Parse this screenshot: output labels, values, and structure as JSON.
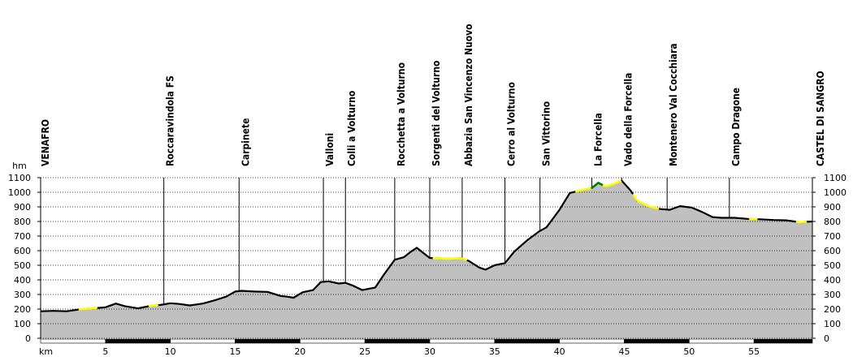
{
  "chart_data": {
    "type": "area",
    "title": "",
    "xlabel": "km",
    "ylabel": "hm",
    "xlim": [
      0,
      59.5
    ],
    "ylim": [
      0,
      1100
    ],
    "xticks": [
      5,
      10,
      15,
      20,
      25,
      30,
      35,
      40,
      45,
      50,
      55
    ],
    "yticks": [
      0,
      100,
      200,
      300,
      400,
      500,
      600,
      700,
      800,
      900,
      1000,
      1100
    ],
    "grid": true,
    "colors": {
      "fill": "#c0c0c0",
      "line": "#000000",
      "grid": "#000000",
      "highlight_gentle": "#ffff00",
      "highlight_steep": "#008000",
      "station_line": "#000000"
    },
    "profile": {
      "x": [
        0,
        1,
        2,
        3,
        4,
        5,
        5.8,
        6.5,
        7.5,
        8.5,
        9.2,
        10,
        10.7,
        11.5,
        12.5,
        13.5,
        14.3,
        15,
        15.5,
        16.5,
        17.5,
        18.5,
        19,
        19.5,
        20.2,
        21,
        21.6,
        22.2,
        23,
        23.5,
        24.1,
        24.8,
        25.8,
        26.5,
        27.3,
        28,
        28.5,
        29,
        29.5,
        30,
        30.5,
        31.5,
        32.5,
        33,
        33.8,
        34.3,
        35,
        35.8,
        36.5,
        37.5,
        38.4,
        39,
        40,
        40.8,
        41.5,
        42,
        42.5,
        43,
        43.5,
        44,
        44.8,
        45.5,
        46,
        47,
        47.8,
        48.5,
        49.3,
        50.2,
        51,
        51.8,
        52.5,
        53.5,
        54.5,
        55.5,
        56.5,
        57.5,
        58.5,
        59.5
      ],
      "y": [
        185,
        188,
        185,
        198,
        205,
        212,
        238,
        220,
        205,
        222,
        228,
        240,
        235,
        225,
        238,
        262,
        285,
        320,
        325,
        320,
        318,
        290,
        285,
        278,
        315,
        330,
        385,
        390,
        375,
        380,
        360,
        330,
        348,
        440,
        538,
        555,
        590,
        620,
        585,
        550,
        548,
        545,
        548,
        530,
        485,
        470,
        500,
        515,
        592,
        670,
        730,
        760,
        880,
        995,
        1010,
        1020,
        1030,
        1065,
        1040,
        1050,
        1080,
        1010,
        940,
        900,
        885,
        880,
        905,
        895,
        865,
        830,
        825,
        825,
        818,
        815,
        810,
        808,
        795,
        800
      ]
    },
    "highlights": [
      {
        "type": "gentle",
        "x": [
          3,
          4.3
        ]
      },
      {
        "type": "gentle",
        "x": [
          8.4,
          9
        ]
      },
      {
        "type": "gentle",
        "x": [
          30.3,
          32.8
        ]
      },
      {
        "type": "gentle",
        "x": [
          41.3,
          42.4
        ]
      },
      {
        "type": "steep",
        "x": [
          42.5,
          43.3
        ]
      },
      {
        "type": "gentle",
        "x": [
          43.4,
          44.7
        ]
      },
      {
        "type": "gentle",
        "x": [
          45.7,
          47.6
        ]
      },
      {
        "type": "gentle",
        "x": [
          54.7,
          55.2
        ]
      },
      {
        "type": "gentle",
        "x": [
          58.3,
          59
        ]
      }
    ],
    "stations": [
      {
        "name": "VENAFRO",
        "km": 0,
        "elev": 185
      },
      {
        "name": "Roccaravindola FS",
        "km": 9.5,
        "elev": 230
      },
      {
        "name": "Carpinete",
        "km": 15.3,
        "elev": 325
      },
      {
        "name": "Valloni",
        "km": 21.8,
        "elev": 385
      },
      {
        "name": "Colli a Volturno",
        "km": 23.5,
        "elev": 380
      },
      {
        "name": "Rocchetta a Volturno",
        "km": 27.3,
        "elev": 540
      },
      {
        "name": "Sorgenti del Volturno",
        "km": 30,
        "elev": 550
      },
      {
        "name": "Abbazia San Vincenzo Nuovo",
        "km": 32.5,
        "elev": 548
      },
      {
        "name": "Cerro al Volturno",
        "km": 35.8,
        "elev": 515
      },
      {
        "name": "San Vittorino",
        "km": 38.5,
        "elev": 735
      },
      {
        "name": "La Forcella",
        "km": 42.5,
        "elev": 1030
      },
      {
        "name": "Vado della Forcella",
        "km": 44.8,
        "elev": 1080
      },
      {
        "name": "Montenero Val Cocchiara",
        "km": 48.3,
        "elev": 880
      },
      {
        "name": "Campo Dragone",
        "km": 53.1,
        "elev": 825
      },
      {
        "name": "CASTEL DI SANGRO",
        "km": 59.5,
        "elev": 800
      }
    ]
  }
}
